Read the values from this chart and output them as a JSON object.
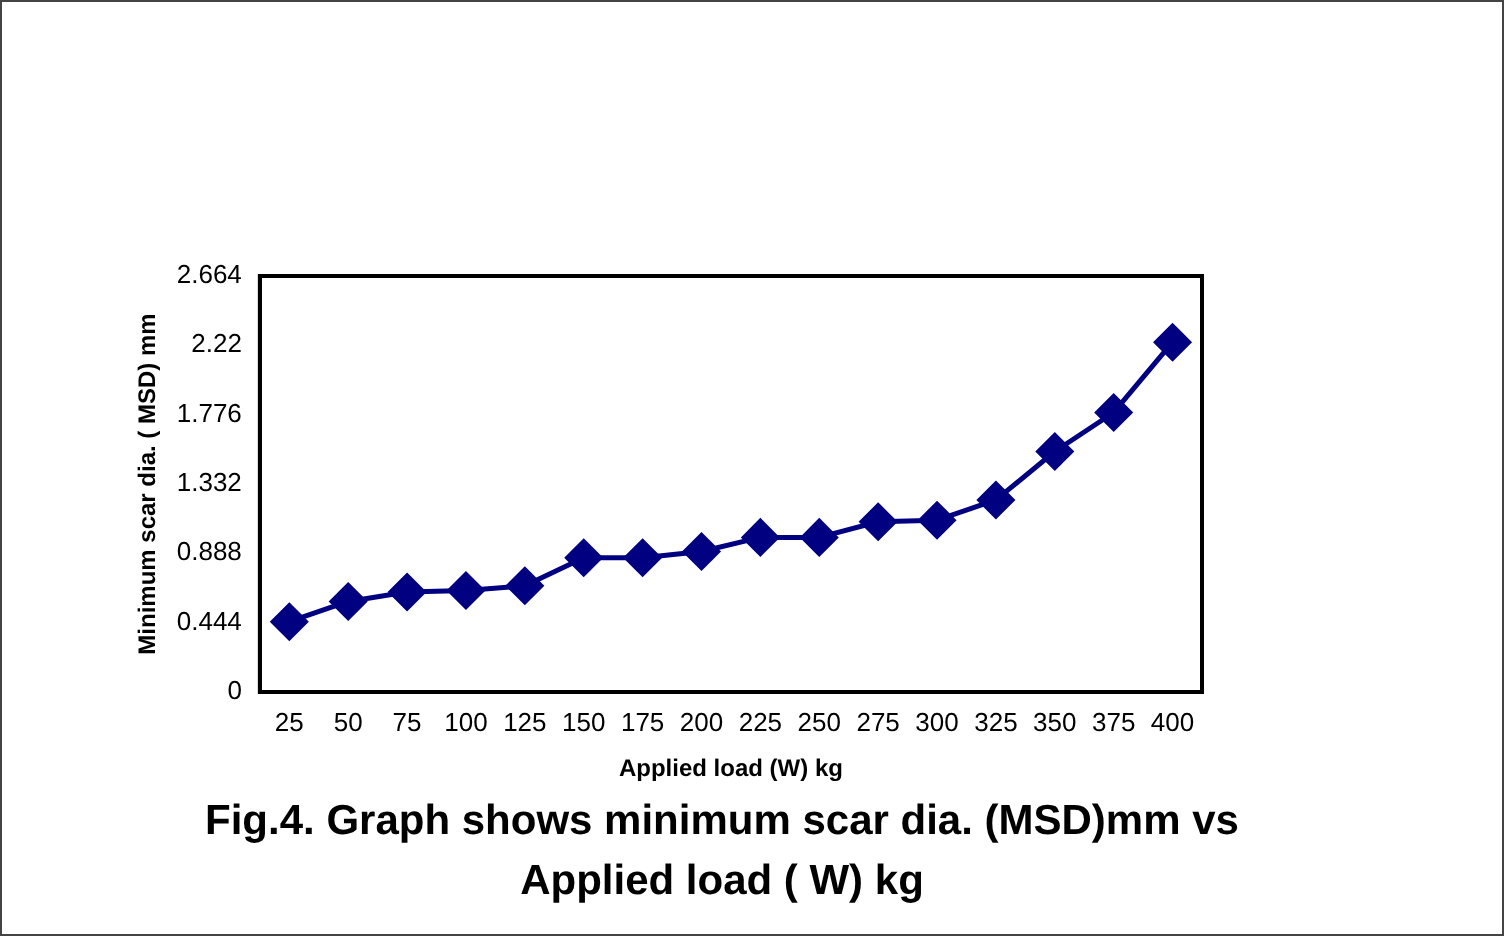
{
  "chart_data": {
    "type": "line",
    "title": "Fig.4. Graph shows minimum scar dia. (MSD)mm vs Applied load ( W) kg",
    "xlabel": "Applied load (W) kg",
    "ylabel": "Minimum scar dia. ( MSD) mm",
    "categories": [
      "25",
      "50",
      "75",
      "100",
      "125",
      "150",
      "175",
      "200",
      "225",
      "250",
      "275",
      "300",
      "325",
      "350",
      "375",
      "400"
    ],
    "series": [
      {
        "color": "#000080",
        "values": [
          0.45,
          0.58,
          0.64,
          0.65,
          0.68,
          0.86,
          0.86,
          0.9,
          0.99,
          0.99,
          1.09,
          1.1,
          1.23,
          1.54,
          1.79,
          2.24
        ]
      }
    ],
    "ylim": [
      0,
      2.664
    ],
    "yticks": [
      0,
      0.444,
      0.888,
      1.332,
      1.776,
      2.22,
      2.664
    ],
    "grid": false,
    "legend": false,
    "marker": "diamond",
    "line_style": "solid"
  }
}
